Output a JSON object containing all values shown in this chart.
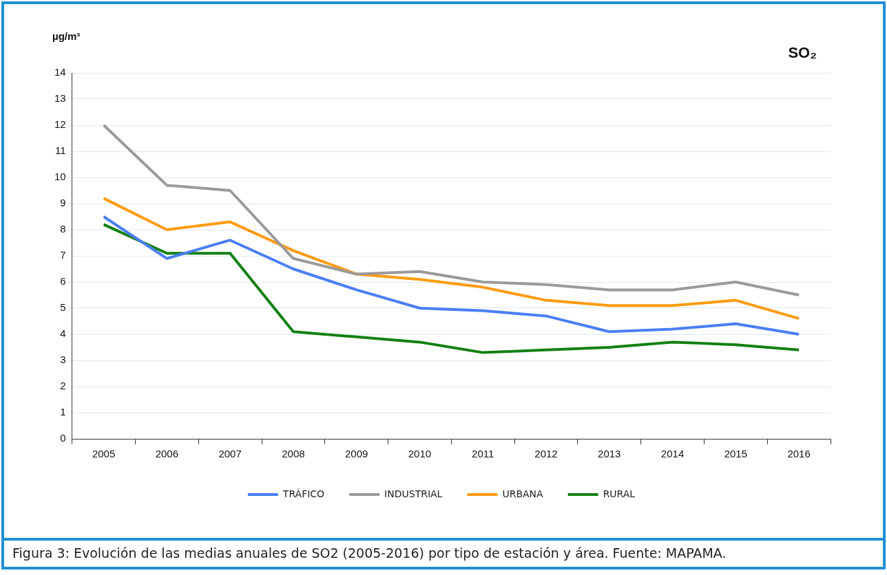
{
  "chart_data": {
    "type": "line",
    "title": "SO₂",
    "ylabel": "µg/m³",
    "categories": [
      "2005",
      "2006",
      "2007",
      "2008",
      "2009",
      "2010",
      "2011",
      "2012",
      "2013",
      "2014",
      "2015",
      "2016"
    ],
    "series": [
      {
        "name": "TRÁFICO",
        "color": "#4a7ef5",
        "values": [
          8.5,
          6.9,
          7.6,
          6.5,
          5.7,
          5.0,
          4.9,
          4.7,
          4.1,
          4.2,
          4.4,
          4.0
        ]
      },
      {
        "name": "INDUSTRIAL",
        "color": "#9a9a9a",
        "values": [
          12.0,
          9.7,
          9.5,
          6.9,
          6.3,
          6.4,
          6.0,
          5.9,
          5.7,
          5.7,
          6.0,
          5.5
        ]
      },
      {
        "name": "URBANA",
        "color": "#ff9b0f",
        "values": [
          9.2,
          8.0,
          8.3,
          7.2,
          6.3,
          6.1,
          5.8,
          5.3,
          5.1,
          5.1,
          5.3,
          4.6
        ]
      },
      {
        "name": "RURAL",
        "color": "#138013",
        "values": [
          8.2,
          7.1,
          7.1,
          4.1,
          3.9,
          3.7,
          3.3,
          3.4,
          3.5,
          3.7,
          3.6,
          3.4
        ]
      }
    ],
    "ylim": [
      0,
      14
    ],
    "yticks": [
      0,
      1,
      2,
      3,
      4,
      5,
      6,
      7,
      8,
      9,
      10,
      11,
      12,
      13,
      14
    ],
    "grid": "y",
    "legend": "bottom",
    "marker": "none",
    "line_style": "solid",
    "annotations": [
      "Figura 3: Evolución de las medias anuales de SO2 (2005-2016) por tipo de estación y área. Fuente: MAPAMA."
    ]
  }
}
